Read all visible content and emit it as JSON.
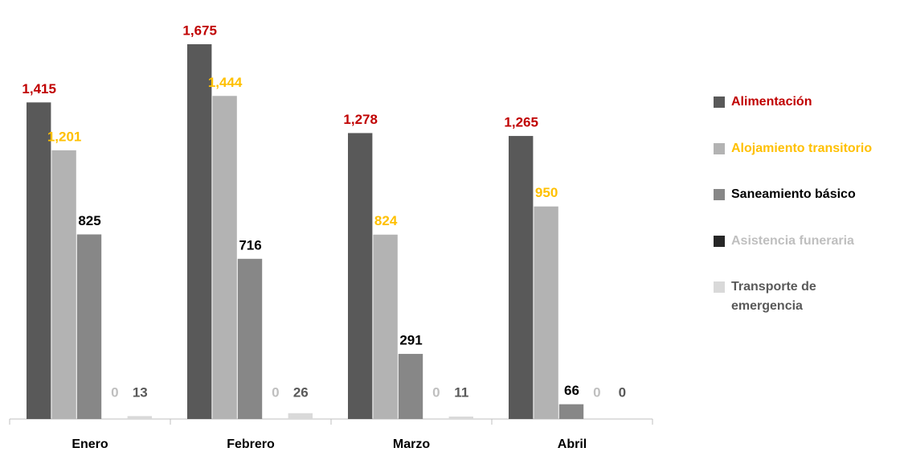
{
  "chart_data": {
    "type": "bar",
    "categories": [
      "Enero",
      "Febrero",
      "Marzo",
      "Abril"
    ],
    "series": [
      {
        "name": "Alimentación",
        "color": "#595959",
        "label_color": "#c00000",
        "values": [
          1415,
          1675,
          1278,
          1265
        ],
        "value_labels": [
          "1,415",
          "1,675",
          "1,278",
          "1,265"
        ]
      },
      {
        "name": "Alojamiento transitorio",
        "color": "#b3b3b3",
        "label_color": "#ffc000",
        "values": [
          1201,
          1444,
          824,
          950
        ],
        "value_labels": [
          "1,201",
          "1,444",
          "824",
          "950"
        ]
      },
      {
        "name": "Saneamiento básico",
        "color": "#878787",
        "label_color": "#000000",
        "values": [
          825,
          716,
          291,
          66
        ]
      },
      {
        "name": "Asistencia funeraria",
        "color": "#262626",
        "label_color": "#bfbfbf",
        "values": [
          0,
          0,
          0,
          0
        ]
      },
      {
        "name": "Transporte de emergencia",
        "color": "#d9d9d9",
        "label_color": "#595959",
        "values": [
          13,
          26,
          11,
          0
        ]
      }
    ]
  }
}
